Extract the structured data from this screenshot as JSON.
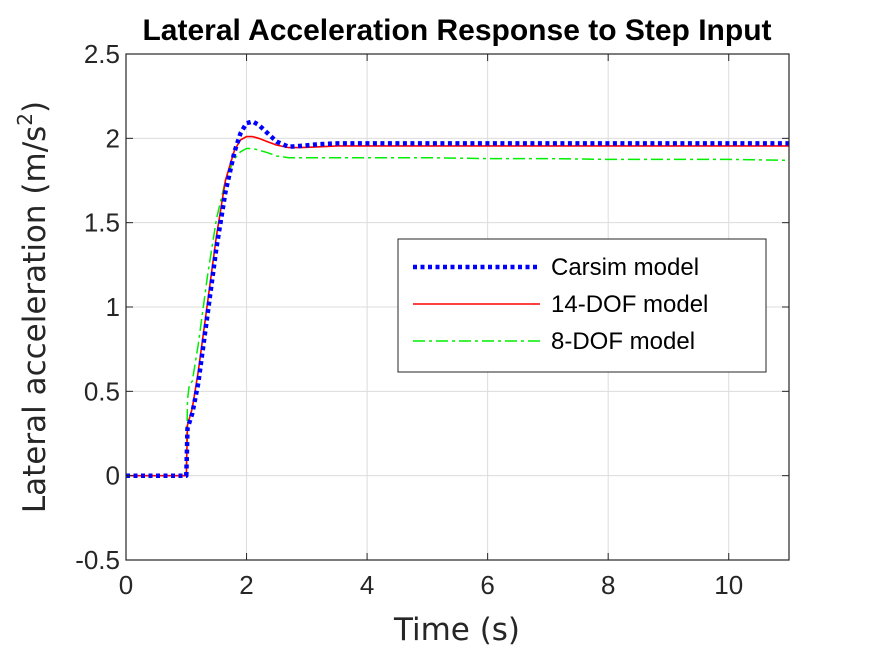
{
  "chart_data": {
    "type": "line",
    "title": "Lateral Acceleration Response to Step Input",
    "xlabel": "Time (s)",
    "ylabel_text": "Lateral acceleration (m/s",
    "ylabel_sup": "2",
    "ylabel_close": ")",
    "xlim": [
      0,
      11
    ],
    "ylim": [
      -0.5,
      2.5
    ],
    "xticks": [
      0,
      2,
      4,
      6,
      8,
      10
    ],
    "yticks": [
      -0.5,
      0,
      0.5,
      1,
      1.5,
      2,
      2.5
    ],
    "xtick_labels": [
      "0",
      "2",
      "4",
      "6",
      "8",
      "10"
    ],
    "ytick_labels": [
      "-0.5",
      "0",
      "0.5",
      "1",
      "1.5",
      "2",
      "2.5"
    ],
    "grid": true,
    "legend_position": "middle-right",
    "series": [
      {
        "name": "Carsim model",
        "color": "#0000ff",
        "style": "dotted",
        "x": [
          0,
          0.98,
          1.0,
          1.02,
          1.1,
          1.2,
          1.35,
          1.5,
          1.65,
          1.8,
          1.9,
          2.0,
          2.1,
          2.2,
          2.35,
          2.5,
          2.7,
          2.9,
          3.2,
          3.5,
          4,
          5,
          6,
          7,
          8,
          9,
          10,
          11
        ],
        "y": [
          0,
          0,
          0.0,
          0.28,
          0.37,
          0.55,
          0.95,
          1.35,
          1.68,
          1.92,
          2.03,
          2.09,
          2.1,
          2.08,
          2.03,
          1.98,
          1.95,
          1.955,
          1.965,
          1.97,
          1.97,
          1.97,
          1.97,
          1.97,
          1.97,
          1.97,
          1.97,
          1.97
        ]
      },
      {
        "name": "14-DOF model",
        "color": "#ff0000",
        "style": "solid",
        "x": [
          0,
          0.98,
          1.0,
          1.02,
          1.1,
          1.2,
          1.35,
          1.5,
          1.65,
          1.8,
          1.9,
          2.0,
          2.1,
          2.2,
          2.35,
          2.5,
          2.7,
          2.9,
          3.2,
          3.5,
          4,
          5,
          6,
          7,
          8,
          9,
          10,
          11
        ],
        "y": [
          0,
          0,
          0.0,
          0.3,
          0.4,
          0.62,
          1.02,
          1.42,
          1.75,
          1.93,
          1.99,
          2.01,
          2.01,
          2.0,
          1.98,
          1.96,
          1.945,
          1.945,
          1.95,
          1.955,
          1.955,
          1.955,
          1.955,
          1.955,
          1.955,
          1.955,
          1.955,
          1.955
        ]
      },
      {
        "name": "8-DOF model",
        "color": "#00ee00",
        "style": "dashdot",
        "x": [
          0,
          0.98,
          1.0,
          1.02,
          1.05,
          1.1,
          1.2,
          1.35,
          1.5,
          1.65,
          1.8,
          1.9,
          2.0,
          2.1,
          2.2,
          2.35,
          2.5,
          2.7,
          3.0,
          3.5,
          4,
          5,
          6,
          7,
          8,
          9,
          10,
          11
        ],
        "y": [
          0,
          0,
          0.0,
          0.45,
          0.54,
          0.56,
          0.78,
          1.18,
          1.52,
          1.75,
          1.88,
          1.92,
          1.94,
          1.94,
          1.93,
          1.915,
          1.895,
          1.885,
          1.885,
          1.885,
          1.885,
          1.885,
          1.88,
          1.88,
          1.875,
          1.875,
          1.875,
          1.87
        ]
      }
    ]
  }
}
